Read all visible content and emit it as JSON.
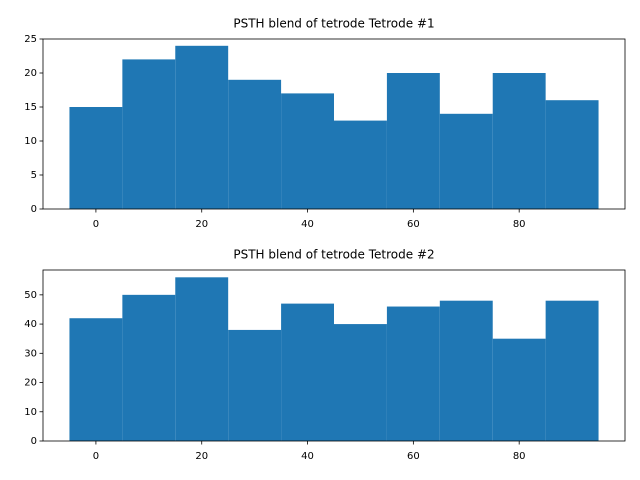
{
  "chart_data": [
    {
      "type": "histogram",
      "title": "PSTH blend of tetrode Tetrode #1",
      "color": "#1f77b4",
      "bins": [
        -5,
        5,
        15,
        25,
        35,
        45,
        55,
        65,
        75,
        85,
        95
      ],
      "values": [
        15,
        22,
        24,
        19,
        17,
        13,
        20,
        14,
        20,
        16
      ],
      "xlim": [
        -10,
        100
      ],
      "xticks": [
        0,
        20,
        40,
        60,
        80
      ],
      "ylim": [
        0,
        25
      ],
      "yticks": [
        0,
        5,
        10,
        15,
        20,
        25
      ]
    },
    {
      "type": "histogram",
      "title": "PSTH blend of tetrode Tetrode #2",
      "color": "#1f77b4",
      "bins": [
        -5,
        5,
        15,
        25,
        35,
        45,
        55,
        65,
        75,
        85,
        95
      ],
      "values": [
        42,
        50,
        56,
        38,
        47,
        40,
        46,
        48,
        35,
        48
      ],
      "xlim": [
        -10,
        100
      ],
      "xticks": [
        0,
        20,
        40,
        60,
        80
      ],
      "ylim": [
        0,
        58.5
      ],
      "yticks": [
        0,
        10,
        20,
        30,
        40,
        50
      ]
    }
  ]
}
